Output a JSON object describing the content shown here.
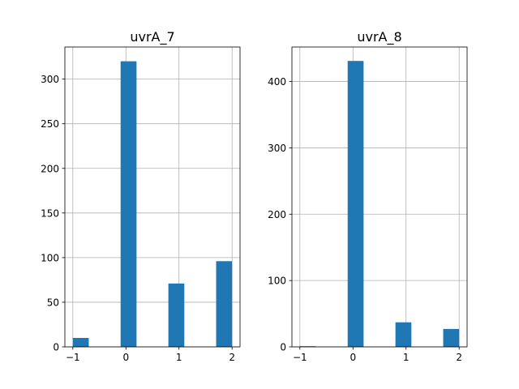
{
  "chart_data": [
    {
      "type": "bar",
      "title": "uvrA_7",
      "bar_color": "#1f77b4",
      "grid": true,
      "xlim": [
        -1.15,
        2.15
      ],
      "ylim": [
        0,
        336
      ],
      "xticks": [
        -1,
        0,
        1,
        2
      ],
      "yticks": [
        0,
        50,
        100,
        150,
        200,
        250,
        300
      ],
      "bins": [
        {
          "start": -1.0,
          "end": -0.7,
          "value": 10
        },
        {
          "start": -0.7,
          "end": -0.4,
          "value": 0
        },
        {
          "start": -0.4,
          "end": -0.1,
          "value": 0
        },
        {
          "start": -0.1,
          "end": 0.2,
          "value": 320
        },
        {
          "start": 0.2,
          "end": 0.5,
          "value": 0
        },
        {
          "start": 0.5,
          "end": 0.8,
          "value": 0
        },
        {
          "start": 0.8,
          "end": 1.1,
          "value": 71
        },
        {
          "start": 1.1,
          "end": 1.4,
          "value": 0
        },
        {
          "start": 1.4,
          "end": 1.7,
          "value": 0
        },
        {
          "start": 1.7,
          "end": 2.0,
          "value": 96
        }
      ]
    },
    {
      "type": "bar",
      "title": "uvrA_8",
      "bar_color": "#1f77b4",
      "grid": true,
      "xlim": [
        -1.15,
        2.15
      ],
      "ylim": [
        0,
        452
      ],
      "xticks": [
        -1,
        0,
        1,
        2
      ],
      "yticks": [
        0,
        100,
        200,
        300,
        400
      ],
      "bins": [
        {
          "start": -1.0,
          "end": -0.7,
          "value": 1
        },
        {
          "start": -0.7,
          "end": -0.4,
          "value": 0
        },
        {
          "start": -0.4,
          "end": -0.1,
          "value": 0
        },
        {
          "start": -0.1,
          "end": 0.2,
          "value": 431
        },
        {
          "start": 0.2,
          "end": 0.5,
          "value": 0
        },
        {
          "start": 0.5,
          "end": 0.8,
          "value": 0
        },
        {
          "start": 0.8,
          "end": 1.1,
          "value": 37
        },
        {
          "start": 1.1,
          "end": 1.4,
          "value": 0
        },
        {
          "start": 1.4,
          "end": 1.7,
          "value": 0
        },
        {
          "start": 1.7,
          "end": 2.0,
          "value": 27
        }
      ]
    }
  ]
}
